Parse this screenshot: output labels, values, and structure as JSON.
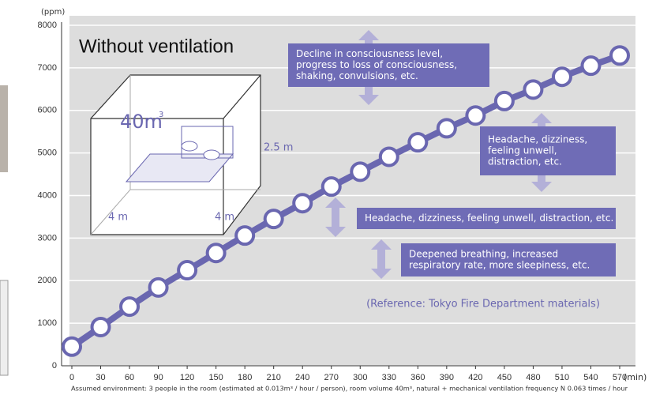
{
  "chart_data": {
    "type": "line",
    "heading": "Without ventilation",
    "x": [
      0,
      30,
      60,
      90,
      120,
      150,
      180,
      210,
      240,
      270,
      300,
      330,
      360,
      390,
      420,
      450,
      480,
      510,
      540,
      570
    ],
    "values": [
      450,
      910,
      1390,
      1840,
      2245,
      2650,
      3060,
      3450,
      3820,
      4210,
      4560,
      4910,
      5250,
      5580,
      5880,
      6220,
      6490,
      6790,
      7050,
      7290
    ],
    "color": "#6a67b0",
    "xlim": [
      0,
      570
    ],
    "xticks": [
      0,
      30,
      60,
      90,
      120,
      150,
      180,
      210,
      240,
      270,
      300,
      330,
      360,
      390,
      420,
      450,
      480,
      510,
      540,
      570
    ],
    "ylim": [
      0,
      8000
    ],
    "yticks": [
      0,
      1000,
      2000,
      3000,
      4000,
      5000,
      6000,
      7000,
      8000
    ],
    "x_unit": "(min)",
    "y_unit": "(ppm)",
    "grid": true,
    "room": {
      "volume": "40m",
      "volume_sup": "3",
      "height": "2.5 m",
      "width": "4 m",
      "depth": "4 m"
    },
    "annotations": [
      {
        "lines": [
          "Decline in consciousness level,",
          "progress to loss of consciousness,",
          "shaking, convulsions, etc."
        ]
      },
      {
        "lines": [
          "Headache, dizziness,",
          "feeling unwell,",
          "distraction, etc."
        ]
      },
      {
        "lines": [
          "Headache, dizziness, feeling unwell, distraction, etc."
        ]
      },
      {
        "lines": [
          "Deepened breathing, increased",
          "respiratory rate, more sleepiness, etc."
        ]
      }
    ],
    "reference": "(Reference: Tokyo Fire Department materials)",
    "footnote": "Assumed environment: 3 people in the room (estimated at 0.013m³ / hour / person), room volume 40m³, natural + mechanical ventilation frequency N 0.063 times / hour"
  }
}
